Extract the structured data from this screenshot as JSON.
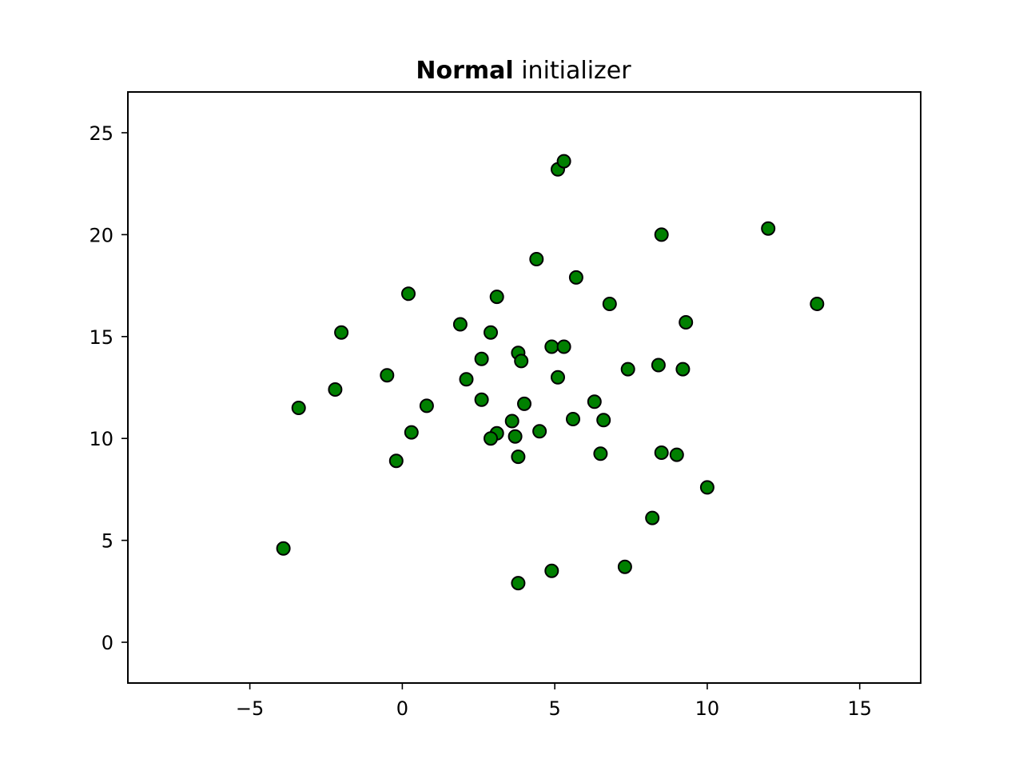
{
  "chart_data": {
    "type": "scatter",
    "title": {
      "bold_part": "Normal",
      "regular_part": "initializer"
    },
    "xlabel": "",
    "ylabel": "",
    "xlim": [
      -9.0,
      17.0
    ],
    "ylim": [
      -2.0,
      27.0
    ],
    "x_ticks": [
      -5,
      0,
      5,
      10,
      15
    ],
    "y_ticks": [
      0,
      5,
      10,
      15,
      20,
      25
    ],
    "x_tick_labels": [
      "−5",
      "0",
      "5",
      "10",
      "15"
    ],
    "y_tick_labels": [
      "0",
      "5",
      "10",
      "15",
      "20",
      "25"
    ],
    "grid": false,
    "legend": null,
    "marker_fill_color": "#008000",
    "marker_edge_color": "#000000",
    "points": [
      {
        "x": 5.1,
        "y": 23.2
      },
      {
        "x": 5.3,
        "y": 23.6
      },
      {
        "x": 8.5,
        "y": 20.0
      },
      {
        "x": 12.0,
        "y": 20.3
      },
      {
        "x": 4.4,
        "y": 18.8
      },
      {
        "x": 5.7,
        "y": 17.9
      },
      {
        "x": 0.2,
        "y": 17.1
      },
      {
        "x": 3.1,
        "y": 16.95
      },
      {
        "x": 6.8,
        "y": 16.6
      },
      {
        "x": 13.6,
        "y": 16.6
      },
      {
        "x": 1.9,
        "y": 15.6
      },
      {
        "x": 9.3,
        "y": 15.7
      },
      {
        "x": -2.0,
        "y": 15.2
      },
      {
        "x": 2.9,
        "y": 15.2
      },
      {
        "x": 4.9,
        "y": 14.5
      },
      {
        "x": 5.3,
        "y": 14.5
      },
      {
        "x": 3.8,
        "y": 14.2
      },
      {
        "x": 2.6,
        "y": 13.9
      },
      {
        "x": 3.9,
        "y": 13.8
      },
      {
        "x": 8.4,
        "y": 13.6
      },
      {
        "x": 7.4,
        "y": 13.4
      },
      {
        "x": 9.2,
        "y": 13.4
      },
      {
        "x": -0.5,
        "y": 13.1
      },
      {
        "x": 5.1,
        "y": 13.0
      },
      {
        "x": 2.1,
        "y": 12.9
      },
      {
        "x": -2.2,
        "y": 12.4
      },
      {
        "x": 2.6,
        "y": 11.9
      },
      {
        "x": 6.3,
        "y": 11.8
      },
      {
        "x": 4.0,
        "y": 11.7
      },
      {
        "x": 0.8,
        "y": 11.6
      },
      {
        "x": -3.4,
        "y": 11.5
      },
      {
        "x": 5.6,
        "y": 10.95
      },
      {
        "x": 6.6,
        "y": 10.9
      },
      {
        "x": 3.6,
        "y": 10.85
      },
      {
        "x": 4.5,
        "y": 10.35
      },
      {
        "x": 0.3,
        "y": 10.3
      },
      {
        "x": 3.1,
        "y": 10.25
      },
      {
        "x": 3.7,
        "y": 10.1
      },
      {
        "x": 2.9,
        "y": 10.0
      },
      {
        "x": 8.5,
        "y": 9.3
      },
      {
        "x": 6.5,
        "y": 9.25
      },
      {
        "x": 9.0,
        "y": 9.2
      },
      {
        "x": 3.8,
        "y": 9.1
      },
      {
        "x": -0.2,
        "y": 8.9
      },
      {
        "x": 10.0,
        "y": 7.6
      },
      {
        "x": 8.2,
        "y": 6.1
      },
      {
        "x": -3.9,
        "y": 4.6
      },
      {
        "x": 7.3,
        "y": 3.7
      },
      {
        "x": 4.9,
        "y": 3.5
      },
      {
        "x": 3.8,
        "y": 2.9
      }
    ]
  }
}
